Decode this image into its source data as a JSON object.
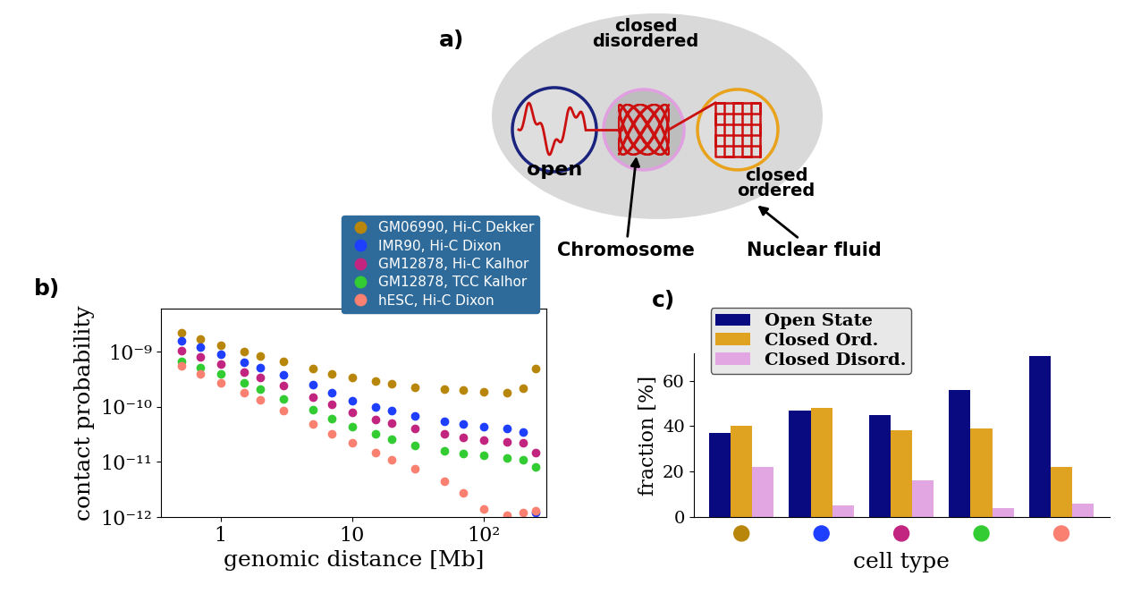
{
  "diagram": {
    "label": "a)",
    "nodes": [
      {
        "label": "open"
      },
      {
        "label": "closed\ndisordered"
      },
      {
        "label": "closed\nordered"
      }
    ],
    "pointers": [
      {
        "label": "Chromosome"
      },
      {
        "label": "Nuclear fluid"
      }
    ]
  },
  "chart_data": [
    {
      "type": "scatter",
      "annotations": [
        "b)"
      ],
      "x_label": "genomic distance [Mb]",
      "y_label": "contact probability",
      "log": true,
      "marker": "o",
      "legend": "upper right",
      "xlim": [
        0.35,
        300
      ],
      "ylim": [
        1e-12,
        6e-09
      ],
      "xticks": [
        1,
        10,
        {
          "value": 100,
          "label": "10²"
        }
      ],
      "yticks": [
        {
          "value": 1e-12,
          "label": "10⁻¹²"
        },
        {
          "value": 1e-11,
          "label": "10⁻¹¹"
        },
        {
          "value": 1e-10,
          "label": "10⁻¹⁰"
        },
        {
          "value": 1e-09,
          "label": "10⁻⁹"
        }
      ],
      "x": [
        0.5,
        0.7,
        1,
        1.5,
        2,
        3,
        5,
        7,
        10,
        15,
        20,
        30,
        50,
        70,
        100,
        150,
        200,
        250
      ],
      "series": [
        {
          "name": "GM06990, Hi-C Dekker",
          "color": "#b8860b",
          "values": [
            2.2e-09,
            1.7e-09,
            1.3e-09,
            1e-09,
            8.5e-10,
            6.8e-10,
            5e-10,
            4e-10,
            3.4e-10,
            2.9e-10,
            2.6e-10,
            2.3e-10,
            2.1e-10,
            2e-10,
            1.9e-10,
            1.8e-10,
            2.2e-10,
            5e-10
          ]
        },
        {
          "name": "IMR90, Hi-C Dixon",
          "color": "#1f3fff",
          "values": [
            1.6e-09,
            1.2e-09,
            9e-10,
            6.5e-10,
            5.2e-10,
            3.8e-10,
            2.5e-10,
            1.8e-10,
            1.3e-10,
            1e-10,
            8.5e-11,
            6.8e-11,
            5.5e-11,
            4.9e-11,
            4.4e-11,
            4e-11,
            3.5e-11,
            1.2e-12
          ]
        },
        {
          "name": "GM12878, Hi-C Kalhor",
          "color": "#c2257f",
          "values": [
            1.05e-09,
            8e-10,
            6e-10,
            4.3e-10,
            3.4e-10,
            2.4e-10,
            1.5e-10,
            1.1e-10,
            8e-11,
            6e-11,
            5e-11,
            4e-11,
            3.2e-11,
            2.8e-11,
            2.5e-11,
            2.3e-11,
            2.2e-11,
            1.5e-11
          ]
        },
        {
          "name": "GM12878, TCC Kalhor",
          "color": "#33cc33",
          "values": [
            6.8e-10,
            5.2e-10,
            3.9e-10,
            2.7e-10,
            2.1e-10,
            1.4e-10,
            8.8e-11,
            6.2e-11,
            4.4e-11,
            3.2e-11,
            2.6e-11,
            2e-11,
            1.6e-11,
            1.4e-11,
            1.3e-11,
            1.2e-11,
            1.1e-11,
            8e-12
          ]
        },
        {
          "name": "hESC, Hi-C Dixon",
          "color": "#fa8072",
          "values": [
            5.5e-10,
            3.9e-10,
            2.7e-10,
            1.8e-10,
            1.35e-10,
            8.5e-11,
            4.8e-11,
            3.2e-11,
            2.2e-11,
            1.5e-11,
            1.1e-11,
            7.5e-12,
            4.5e-12,
            2.8e-12,
            1.4e-12,
            1.1e-12,
            1.2e-12,
            1.3e-12
          ]
        }
      ]
    },
    {
      "type": "bar",
      "annotations": [
        "c)"
      ],
      "x_label": "cell type",
      "y_label": "fraction [%]",
      "legend": "upper left",
      "categories": [
        null,
        null,
        null,
        null,
        null
      ],
      "ylim": [
        0,
        72
      ],
      "yticks": [
        0,
        20,
        40,
        60
      ],
      "series": [
        {
          "name": "Open State",
          "color": "#0a0a80",
          "values": [
            37,
            47,
            45,
            56,
            71
          ]
        },
        {
          "name": "Closed Ord.",
          "color": "#e0a321",
          "values": [
            40,
            48,
            38,
            39,
            22
          ]
        },
        {
          "name": "Closed Disord.",
          "color": "#e2a6e2",
          "values": [
            22,
            5,
            16,
            4,
            6
          ]
        }
      ]
    }
  ]
}
